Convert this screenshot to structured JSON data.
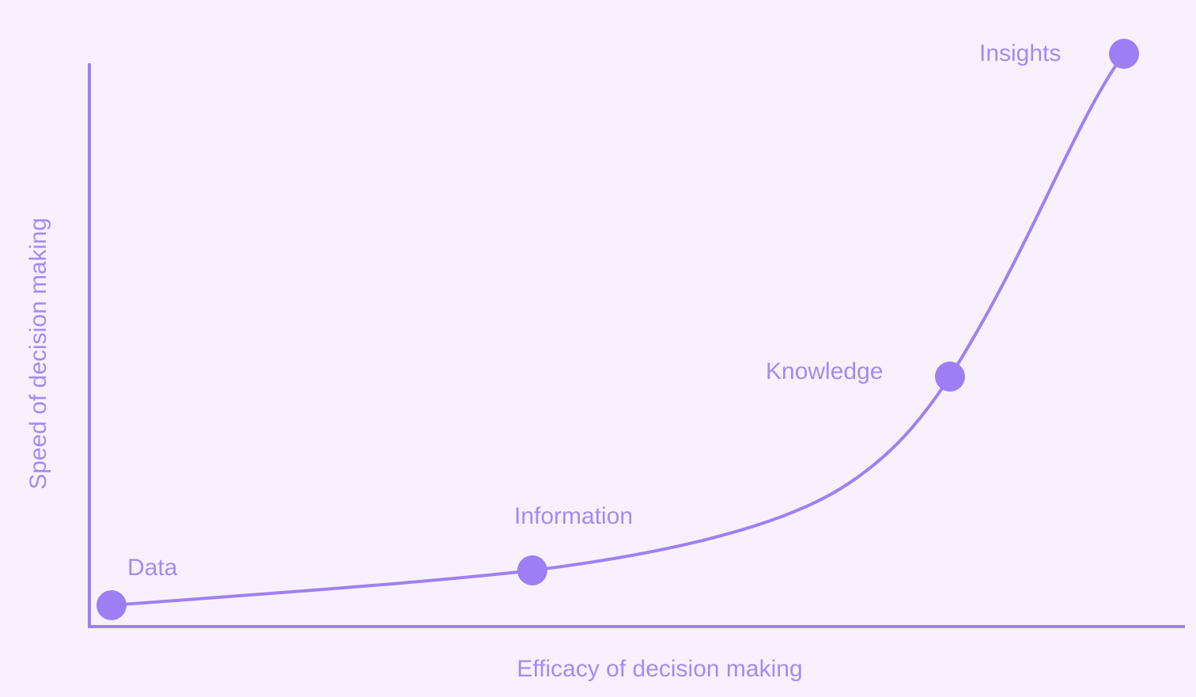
{
  "axes": {
    "x_label": "Efficacy of decision making",
    "y_label": "Speed of decision making"
  },
  "nodes": [
    {
      "label": "Data"
    },
    {
      "label": "Information"
    },
    {
      "label": "Knowledge"
    },
    {
      "label": "Insights"
    }
  ]
}
